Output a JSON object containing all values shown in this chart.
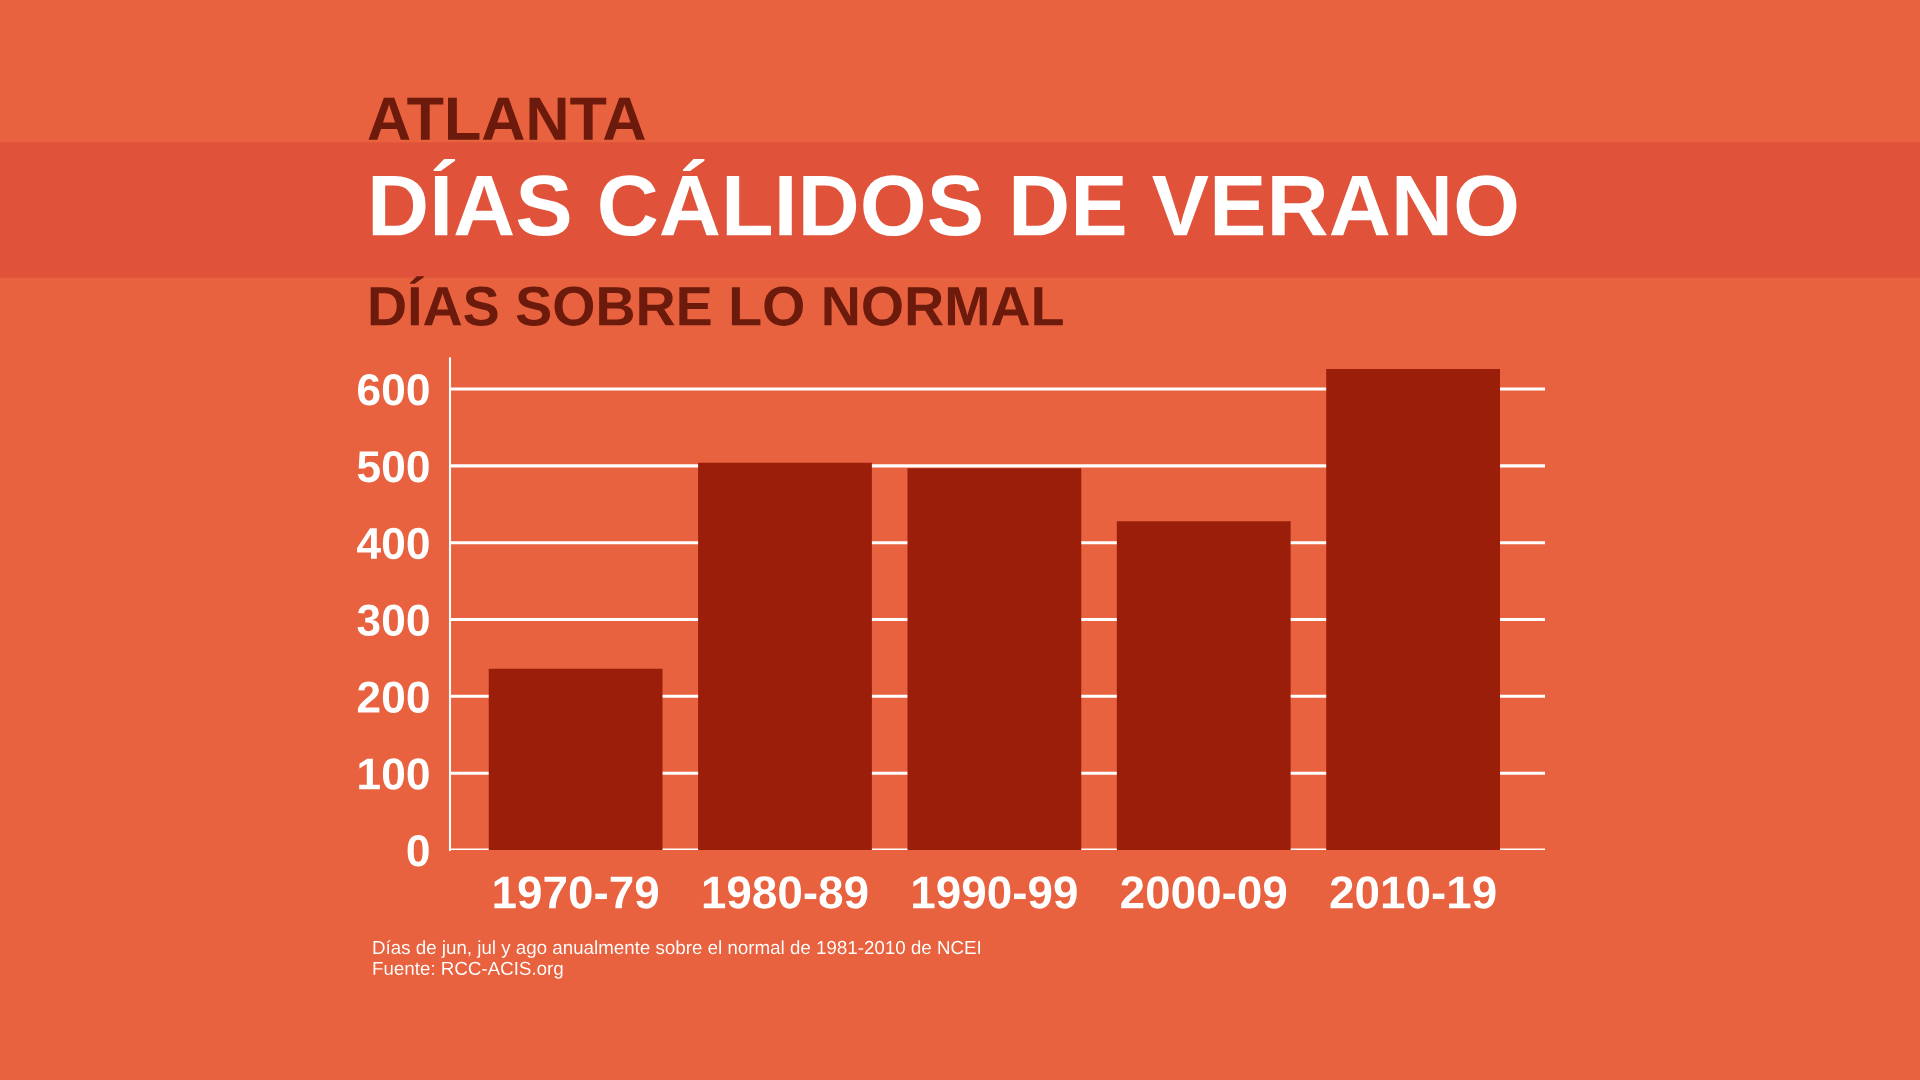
{
  "chart_data": {
    "type": "bar",
    "subtitle": "ATLANTA",
    "title": "DÍAS CÁLIDOS DE VERANO",
    "ylabel": "DÍAS SOBRE LO NORMAL",
    "categories": [
      "1970-79",
      "1980-89",
      "1990-99",
      "2000-09",
      "2010-19"
    ],
    "values": [
      236,
      504,
      497,
      428,
      626
    ],
    "color": "#9a1e0a",
    "ylim": [
      0,
      640
    ],
    "yticks": [
      0,
      100,
      200,
      300,
      400,
      500,
      600
    ],
    "grid": "y",
    "annotations": [
      "Días de jun, jul y ago anualmente sobre el normal de 1981-2010 de NCEI",
      "Fuente: RCC-ACIS.org"
    ]
  }
}
